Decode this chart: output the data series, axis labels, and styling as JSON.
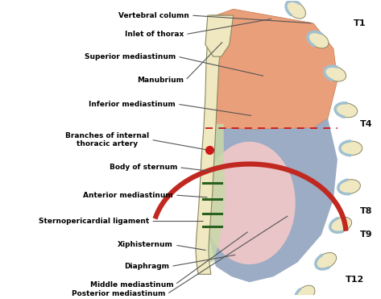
{
  "bg_color": "#ffffff",
  "orange_color": "#E8956D",
  "blue_color": "#8A9EBA",
  "pink_color": "#F2C8C8",
  "green_strip_color": "#C8D8A8",
  "sternum_color": "#F0E8C0",
  "vertebra_fill": "#F0E8C0",
  "vertebra_border": "#A0C0D0",
  "diaphragm_color": "#C02820",
  "red_dot_color": "#CC1818",
  "dashed_color": "#CC1818",
  "line_color": "#555555",
  "label_color": "#000000",
  "T_labels": [
    "T1",
    "T4",
    "T8",
    "T9",
    "T12"
  ],
  "labels": [
    "Vertebral column",
    "Inlet of thorax",
    "Superior mediastinum",
    "Manubrium",
    "Inferior mediastinum",
    "Branches of internal\nthoracic artery",
    "Body of sternum",
    "Anterior mediastinum",
    "Sternopericardial ligament",
    "Xiphisternum",
    "Diaphragm",
    "Middle mediastinum",
    "Posterior mediastinum"
  ]
}
